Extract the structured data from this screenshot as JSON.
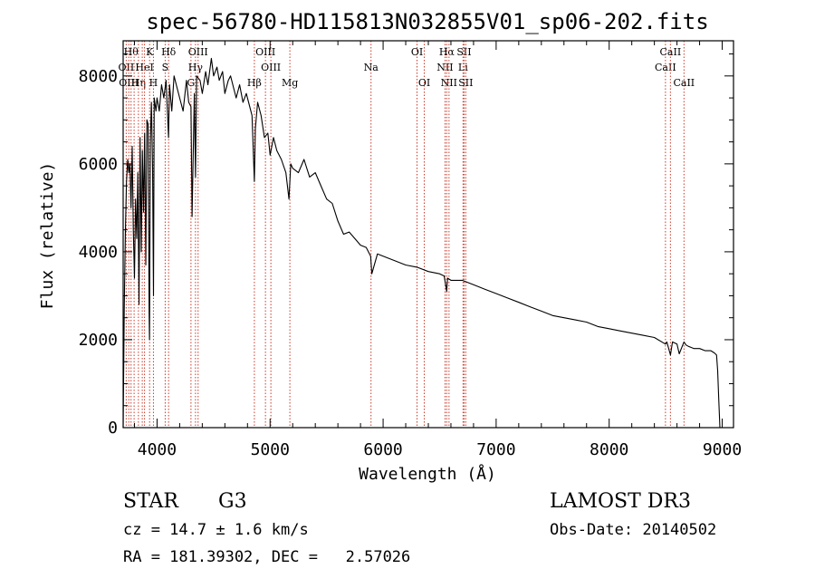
{
  "chart_data": {
    "type": "line",
    "title": "spec-56780-HD115813N032855V01_sp06-202.fits",
    "xlabel": "Wavelength (Å)",
    "ylabel": "Flux (relative)",
    "xlim": [
      3700,
      9100
    ],
    "ylim": [
      0,
      8800
    ],
    "xticks": [
      4000,
      5000,
      6000,
      7000,
      8000,
      9000
    ],
    "yticks": [
      0,
      2000,
      4000,
      6000,
      8000
    ],
    "grid": false,
    "series": [
      {
        "name": "flux",
        "x": [
          3700,
          3710,
          3720,
          3730,
          3740,
          3750,
          3760,
          3770,
          3780,
          3790,
          3800,
          3810,
          3820,
          3830,
          3840,
          3850,
          3860,
          3870,
          3880,
          3890,
          3900,
          3910,
          3920,
          3930,
          3933,
          3940,
          3950,
          3960,
          3968,
          3975,
          3990,
          4000,
          4020,
          4040,
          4060,
          4080,
          4101,
          4110,
          4130,
          4150,
          4180,
          4200,
          4230,
          4260,
          4280,
          4300,
          4310,
          4330,
          4340,
          4350,
          4380,
          4400,
          4430,
          4450,
          4480,
          4500,
          4530,
          4550,
          4580,
          4600,
          4630,
          4650,
          4680,
          4700,
          4730,
          4760,
          4790,
          4820,
          4840,
          4861,
          4870,
          4890,
          4920,
          4950,
          4980,
          5000,
          5030,
          5060,
          5100,
          5140,
          5167,
          5183,
          5200,
          5250,
          5300,
          5350,
          5400,
          5450,
          5500,
          5550,
          5600,
          5650,
          5700,
          5750,
          5800,
          5850,
          5890,
          5900,
          5950,
          6000,
          6100,
          6200,
          6300,
          6400,
          6500,
          6540,
          6563,
          6570,
          6600,
          6650,
          6700,
          6800,
          6900,
          7000,
          7100,
          7200,
          7300,
          7400,
          7500,
          7600,
          7700,
          7800,
          7900,
          8000,
          8100,
          8200,
          8300,
          8400,
          8498,
          8510,
          8542,
          8560,
          8600,
          8620,
          8662,
          8680,
          8700,
          8750,
          8800,
          8850,
          8900,
          8930,
          8950,
          8960,
          8970,
          8980
        ],
        "values": [
          0,
          2700,
          4500,
          5600,
          6100,
          5800,
          6000,
          5000,
          6400,
          4500,
          3400,
          5200,
          4300,
          5800,
          2800,
          6600,
          4000,
          6300,
          4900,
          6700,
          3700,
          7000,
          6900,
          2600,
          2000,
          6500,
          7400,
          5900,
          3000,
          7500,
          7200,
          7500,
          7200,
          7800,
          7500,
          7900,
          6600,
          7800,
          7200,
          8000,
          7700,
          7500,
          7200,
          7900,
          7400,
          7300,
          4800,
          7600,
          5700,
          8000,
          7900,
          7600,
          8100,
          7800,
          8400,
          8000,
          8200,
          7900,
          8100,
          7600,
          7900,
          8000,
          7700,
          7500,
          7800,
          7400,
          7600,
          7300,
          7100,
          5600,
          6800,
          7400,
          7100,
          6600,
          6700,
          6200,
          6600,
          6300,
          6100,
          5800,
          5200,
          6000,
          5900,
          5800,
          6100,
          5700,
          5800,
          5500,
          5200,
          5100,
          4700,
          4400,
          4450,
          4300,
          4150,
          4100,
          3900,
          3500,
          3950,
          3900,
          3800,
          3700,
          3650,
          3550,
          3500,
          3450,
          3100,
          3400,
          3350,
          3350,
          3350,
          3250,
          3150,
          3050,
          2950,
          2850,
          2750,
          2650,
          2550,
          2500,
          2450,
          2400,
          2300,
          2250,
          2200,
          2150,
          2100,
          2050,
          1900,
          1950,
          1650,
          1950,
          1900,
          1680,
          1950,
          1880,
          1850,
          1800,
          1800,
          1750,
          1750,
          1700,
          1650,
          1300,
          600,
          0
        ]
      }
    ],
    "lines": [
      {
        "x": 3727,
        "labels": [
          "OII"
        ],
        "row": 1
      },
      {
        "x": 3750,
        "labels": [
          "OIII"
        ],
        "row": 2
      },
      {
        "x": 3770,
        "labels": [
          "Hθ"
        ],
        "row": 0
      },
      {
        "x": 3797,
        "labels": [],
        "row": 0
      },
      {
        "x": 3835,
        "labels": [
          "Hη"
        ],
        "row": 2
      },
      {
        "x": 3869,
        "labels": [],
        "row": 0
      },
      {
        "x": 3889,
        "labels": [
          "HeI"
        ],
        "row": 1
      },
      {
        "x": 3934,
        "labels": [
          "K"
        ],
        "row": 0
      },
      {
        "x": 3968,
        "labels": [
          "H"
        ],
        "row": 2
      },
      {
        "x": 4072,
        "labels": [
          "S"
        ],
        "row": 1
      },
      {
        "x": 4102,
        "labels": [
          "Hδ"
        ],
        "row": 0
      },
      {
        "x": 4300,
        "labels": [
          "G"
        ],
        "row": 2
      },
      {
        "x": 4340,
        "labels": [
          "Hγ"
        ],
        "row": 1
      },
      {
        "x": 4363,
        "labels": [
          "OIII"
        ],
        "row": 0
      },
      {
        "x": 4861,
        "labels": [
          "Hβ"
        ],
        "row": 2
      },
      {
        "x": 4959,
        "labels": [
          "OIII"
        ],
        "row": 0
      },
      {
        "x": 5007,
        "labels": [
          "OIII"
        ],
        "row": 1
      },
      {
        "x": 5175,
        "labels": [
          "Mg"
        ],
        "row": 2
      },
      {
        "x": 5893,
        "labels": [
          "Na"
        ],
        "row": 1
      },
      {
        "x": 6300,
        "labels": [
          "OI"
        ],
        "row": 0
      },
      {
        "x": 6364,
        "labels": [
          "OI"
        ],
        "row": 2
      },
      {
        "x": 6548,
        "labels": [
          "NII"
        ],
        "row": 1
      },
      {
        "x": 6563,
        "labels": [
          "Hα"
        ],
        "row": 0
      },
      {
        "x": 6583,
        "labels": [
          "NII"
        ],
        "row": 2
      },
      {
        "x": 6707,
        "labels": [
          "Li"
        ],
        "row": 1
      },
      {
        "x": 6716,
        "labels": [
          "SII"
        ],
        "row": 0
      },
      {
        "x": 6731,
        "labels": [
          "SII"
        ],
        "row": 2
      },
      {
        "x": 8498,
        "labels": [
          "CaII"
        ],
        "row": 1
      },
      {
        "x": 8542,
        "labels": [
          "CaII"
        ],
        "row": 0
      },
      {
        "x": 8662,
        "labels": [
          "CaII"
        ],
        "row": 2
      }
    ]
  },
  "info": {
    "object_class": "STAR",
    "subclass": "G3",
    "survey": "LAMOST DR3",
    "redshift_text": "cz = 14.7 ± 1.6 km/s",
    "obs_date_text": "Obs-Date: 20140502",
    "coords_text": "RA = 181.39302, DEC =   2.57026"
  },
  "colors": {
    "spectrum": "#000000",
    "line_markers": "#cc3a2a",
    "axes": "#000000"
  }
}
